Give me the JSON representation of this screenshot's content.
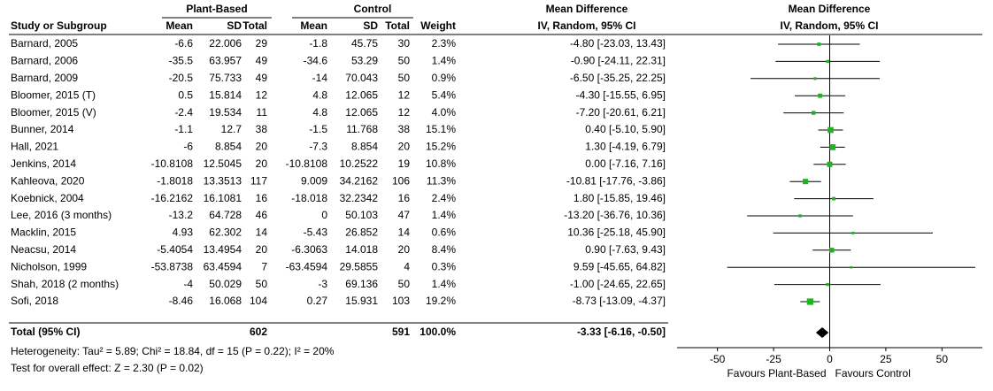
{
  "chart_data": {
    "type": "forest",
    "headers": {
      "group_plant": "Plant-Based",
      "group_control": "Control",
      "md_table": "Mean Difference",
      "md_plot": "Mean Difference",
      "columns": [
        "Study or Subgroup",
        "Mean",
        "SD",
        "Total",
        "Mean",
        "SD",
        "Total",
        "Weight",
        "IV, Random, 95% CI"
      ],
      "plot_method": "IV, Random, 95% CI"
    },
    "studies": [
      "Barnard, 2005",
      "Barnard, 2006",
      "Barnard, 2009",
      "Bloomer, 2015 (T)",
      "Bloomer, 2015 (V)",
      "Bunner, 2014",
      "Hall, 2021",
      "Jenkins, 2014",
      "Kahleova, 2020",
      "Koebnick, 2004",
      "Lee, 2016 (3 months)",
      "Macklin, 2015",
      "Neacsu, 2014",
      "Nicholson, 1999",
      "Shah, 2018 (2 months)",
      "Sofi, 2018"
    ],
    "plant": {
      "mean": [
        -6.6,
        -35.5,
        -20.5,
        0.5,
        -2.4,
        -1.1,
        -6,
        -10.8108,
        -1.8018,
        -16.2162,
        -13.2,
        4.93,
        -5.4054,
        -53.8738,
        -4,
        -8.46
      ],
      "sd": [
        22.006,
        63.957,
        75.733,
        15.814,
        19.534,
        12.7,
        8.854,
        12.5045,
        13.3513,
        16.1081,
        64.728,
        62.302,
        13.4954,
        63.4594,
        50.029,
        16.068
      ],
      "total": [
        29,
        49,
        49,
        12,
        11,
        38,
        20,
        20,
        117,
        16,
        46,
        14,
        20,
        7,
        50,
        104
      ]
    },
    "control": {
      "mean": [
        -1.8,
        -34.6,
        -14,
        4.8,
        4.8,
        -1.5,
        -7.3,
        -10.8108,
        9.009,
        -18.018,
        0,
        -5.43,
        -6.3063,
        -63.4594,
        -3,
        0.27
      ],
      "sd": [
        45.75,
        53.29,
        70.043,
        12.065,
        12.065,
        11.768,
        8.854,
        10.2522,
        34.2162,
        32.2342,
        50.103,
        26.852,
        14.018,
        29.5855,
        69.136,
        15.931
      ],
      "total": [
        30,
        50,
        50,
        12,
        12,
        38,
        20,
        19,
        106,
        16,
        47,
        14,
        20,
        4,
        50,
        103
      ]
    },
    "weights": [
      2.3,
      1.4,
      0.9,
      5.4,
      4.0,
      15.1,
      15.2,
      10.8,
      11.3,
      2.4,
      1.4,
      0.6,
      8.4,
      0.3,
      1.4,
      19.2
    ],
    "weight_labels": [
      "2.3%",
      "1.4%",
      "0.9%",
      "5.4%",
      "4.0%",
      "15.1%",
      "15.2%",
      "10.8%",
      "11.3%",
      "2.4%",
      "1.4%",
      "0.6%",
      "8.4%",
      "0.3%",
      "1.4%",
      "19.2%"
    ],
    "values": [
      -4.8,
      -0.9,
      -6.5,
      -4.3,
      -7.2,
      0.4,
      1.3,
      0,
      -10.81,
      1.8,
      -13.2,
      10.36,
      0.9,
      9.59,
      -1,
      -8.73
    ],
    "value_labels": [
      "-4.80 [-23.03, 13.43]",
      "-0.90 [-24.11, 22.31]",
      "-6.50 [-35.25, 22.25]",
      "-4.30 [-15.55, 6.95]",
      "-7.20 [-20.61, 6.21]",
      "0.40 [-5.10, 5.90]",
      "1.30 [-4.19, 6.79]",
      "0.00 [-7.16, 7.16]",
      "-10.81 [-17.76, -3.86]",
      "1.80 [-15.85, 19.46]",
      "-13.20 [-36.76, 10.36]",
      "10.36 [-25.18, 45.90]",
      "0.90 [-7.63, 9.43]",
      "9.59 [-45.65, 64.82]",
      "-1.00 [-24.65, 22.65]",
      "-8.73 [-13.09, -4.37]"
    ],
    "ci_low": [
      -23.03,
      -24.11,
      -35.25,
      -15.55,
      -20.61,
      -5.1,
      -4.19,
      -7.16,
      -17.76,
      -15.85,
      -36.76,
      -25.18,
      -7.63,
      -45.65,
      -24.65,
      -13.09
    ],
    "ci_high": [
      13.43,
      22.31,
      22.25,
      6.95,
      6.21,
      5.9,
      6.79,
      7.16,
      -3.86,
      19.46,
      10.36,
      45.9,
      9.43,
      64.82,
      22.65,
      -4.37
    ],
    "color": "#1fb31f",
    "total": {
      "label": "Total (95% CI)",
      "plant_total": 602,
      "control_total": 591,
      "weight_label": "100.0%",
      "value": -3.33,
      "value_label": "-3.33 [-6.16, -0.50]",
      "ci_low": -6.16,
      "ci_high": -0.5,
      "color": "#000000"
    },
    "heterogeneity": "Heterogeneity: Tau² = 5.89; Chi² = 18.84, df = 15 (P = 0.22); I² = 20%",
    "overall_test": "Test for overall effect: Z = 2.30 (P = 0.02)",
    "xlim": [
      -68,
      68
    ],
    "xticks": [
      -50,
      -25,
      0,
      25,
      50
    ],
    "favours_left": "Favours Plant-Based",
    "favours_right": "Favours Control"
  }
}
